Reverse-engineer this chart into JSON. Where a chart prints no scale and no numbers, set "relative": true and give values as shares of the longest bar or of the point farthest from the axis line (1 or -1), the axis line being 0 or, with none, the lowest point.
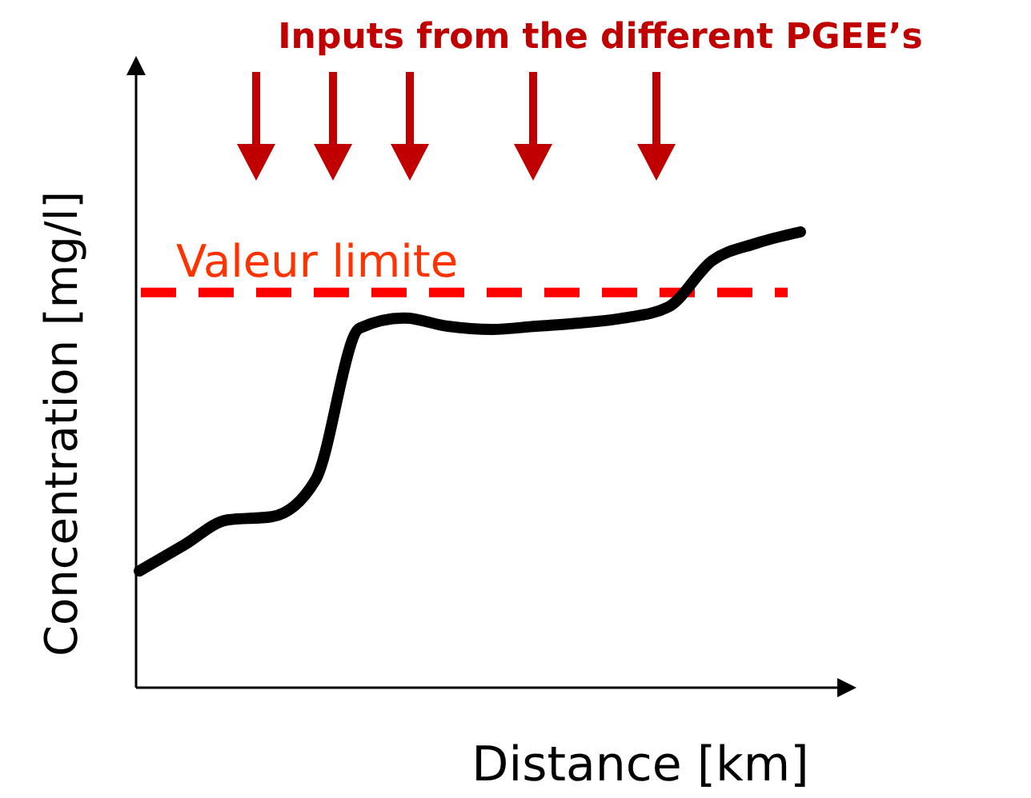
{
  "chart_data": {
    "type": "line",
    "title": "Inputs from the different PGEE’s",
    "xlabel": "Distance [km]",
    "ylabel": "Concentration [mg/l]",
    "relative": true,
    "categories": [
      null,
      null,
      null,
      null,
      null,
      null,
      null,
      null,
      null,
      null,
      null,
      null,
      null,
      null,
      null,
      null
    ],
    "series": [
      {
        "color": "#000000",
        "values": [
          0.256,
          0.312,
          0.368,
          0.375,
          0.456,
          0.789,
          0.811,
          0.793,
          0.786,
          0.793,
          0.8,
          0.811,
          0.835,
          0.937,
          0.975,
          1
        ]
      }
    ],
    "ref_lines": [
      {
        "axis": "y",
        "value": 0.867,
        "label": "Valeur limite",
        "color": "#ff0000",
        "line_style": "dashed"
      }
    ],
    "line_style": "solid"
  }
}
